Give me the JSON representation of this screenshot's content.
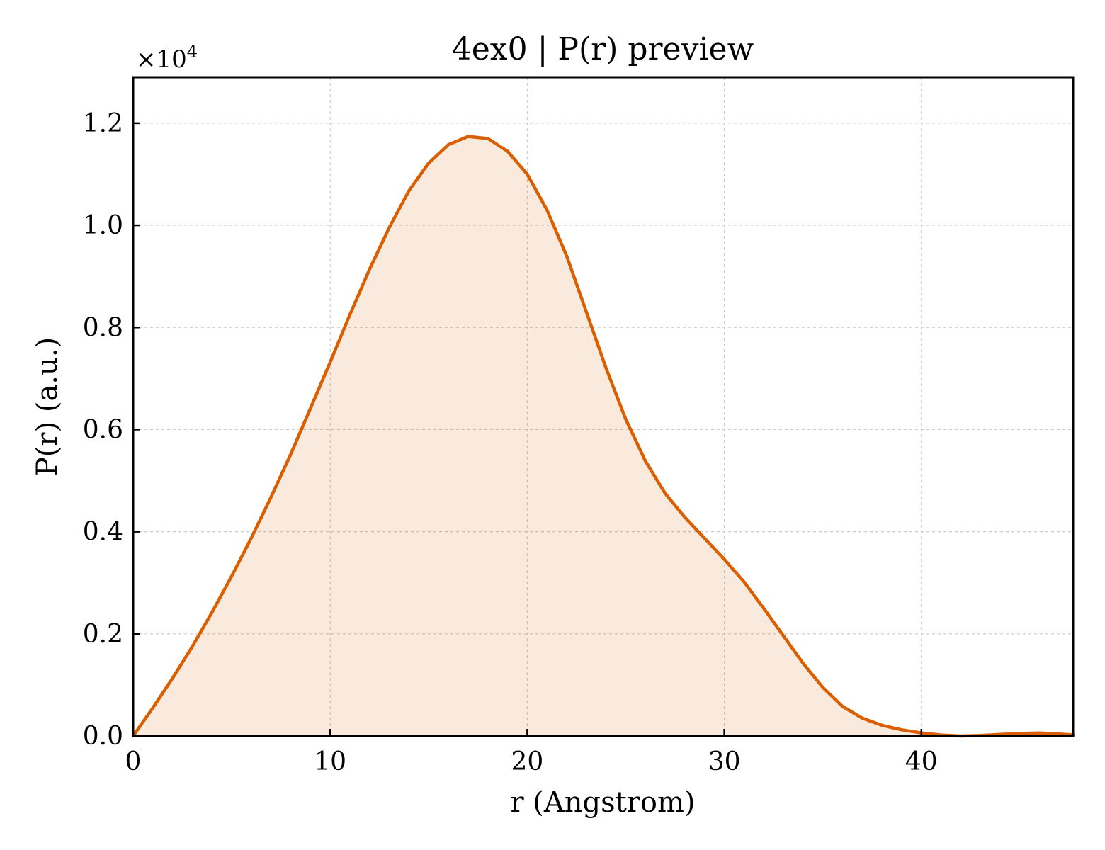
{
  "chart_data": {
    "type": "area",
    "title": "4ex0 | P(r) preview",
    "xlabel": "r (Angstrom)",
    "ylabel": "P(r) (a.u.)",
    "y_offset_label": "×10⁴",
    "y_offset_base": "×10",
    "y_offset_exponent": "4",
    "xlim": [
      0,
      47.7
    ],
    "ylim": [
      0,
      12900
    ],
    "x_ticks": [
      0,
      10,
      20,
      30,
      40
    ],
    "x_tick_labels": [
      "0",
      "10",
      "20",
      "30",
      "40"
    ],
    "y_ticks": [
      0,
      2000,
      4000,
      6000,
      8000,
      10000,
      12000
    ],
    "y_tick_labels": [
      "0.0",
      "0.2",
      "0.4",
      "0.6",
      "0.8",
      "1.0",
      "1.2"
    ],
    "grid": true,
    "line_color": "#d95f02",
    "fill_color": "#d95f02",
    "series": [
      {
        "x": [
          0,
          1,
          2,
          3,
          4,
          5,
          6,
          7,
          8,
          9,
          10,
          11,
          12,
          13,
          14,
          15,
          16,
          17,
          18,
          19,
          20,
          21,
          22,
          23,
          24,
          25,
          26,
          27,
          28,
          29,
          30,
          31,
          32,
          33,
          34,
          35,
          36,
          37,
          38,
          39,
          40,
          41,
          42,
          43,
          44,
          45,
          46,
          47,
          47.7
        ],
        "y": [
          0,
          550,
          1130,
          1750,
          2420,
          3130,
          3880,
          4680,
          5520,
          6420,
          7320,
          8250,
          9140,
          9960,
          10680,
          11220,
          11580,
          11740,
          11700,
          11450,
          11000,
          10300,
          9400,
          8300,
          7200,
          6200,
          5380,
          4750,
          4280,
          3870,
          3460,
          3020,
          2500,
          1960,
          1420,
          950,
          580,
          350,
          210,
          120,
          60,
          20,
          0,
          10,
          30,
          50,
          60,
          40,
          20
        ]
      }
    ]
  }
}
